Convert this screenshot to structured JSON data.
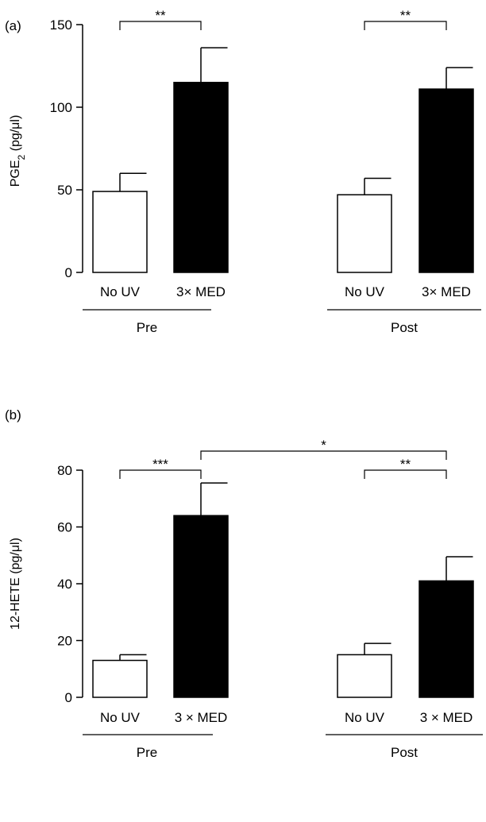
{
  "chart_data": [
    {
      "type": "bar",
      "panel_label": "(a)",
      "ylabel": "PGE",
      "ylabel_subscript": "2",
      "ylabel_unit": " (pg/μl)",
      "ylim": [
        0,
        150
      ],
      "yticks": [
        "0",
        "50",
        "100",
        "150"
      ],
      "ytick_values": [
        0,
        50,
        100,
        150
      ],
      "groups": [
        "Pre",
        "Post"
      ],
      "categories": [
        "No UV",
        "3× MED",
        "No UV",
        "3× MED"
      ],
      "values": [
        49,
        115,
        47,
        111
      ],
      "errors": [
        11,
        21,
        10,
        13
      ],
      "bar_colors": [
        "#ffffff",
        "#000000",
        "#ffffff",
        "#000000"
      ],
      "significance": [
        {
          "from": 0,
          "to": 1,
          "label": "**"
        },
        {
          "from": 2,
          "to": 3,
          "label": "**"
        }
      ]
    },
    {
      "type": "bar",
      "panel_label": "(b)",
      "ylabel": "12-HETE",
      "ylabel_subscript": "",
      "ylabel_unit": " (pg/μl)",
      "ylim": [
        0,
        80
      ],
      "yticks": [
        "0",
        "20",
        "40",
        "60",
        "80"
      ],
      "ytick_values": [
        0,
        20,
        40,
        60,
        80
      ],
      "groups": [
        "Pre",
        "Post"
      ],
      "categories": [
        "No UV",
        "3 × MED",
        "No UV",
        "3 × MED"
      ],
      "values": [
        13,
        64,
        15,
        41
      ],
      "errors": [
        2,
        11.5,
        4,
        8.5
      ],
      "bar_colors": [
        "#ffffff",
        "#000000",
        "#ffffff",
        "#000000"
      ],
      "significance": [
        {
          "from": 0,
          "to": 1,
          "label": "***"
        },
        {
          "from": 2,
          "to": 3,
          "label": "**"
        },
        {
          "from": 1,
          "to": 3,
          "label": "*"
        }
      ]
    }
  ]
}
